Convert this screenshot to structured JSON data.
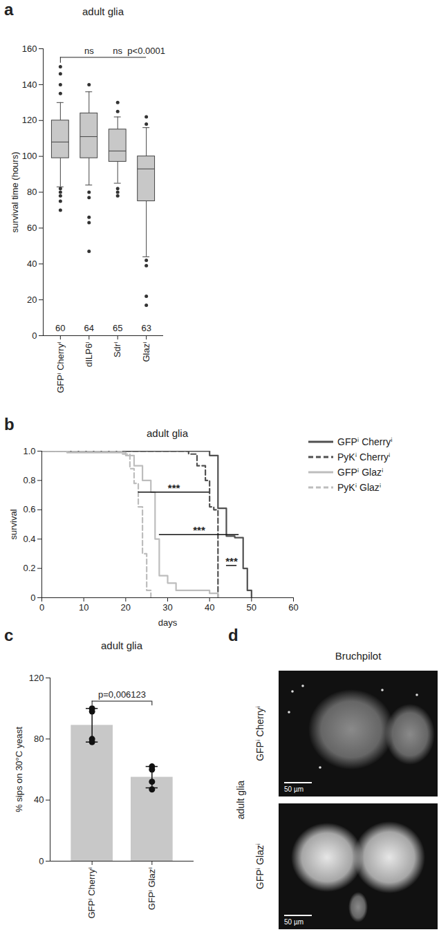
{
  "chart_data": [
    {
      "panel": "a",
      "type": "box",
      "title": "adult glia",
      "ylabel": "survival time (hours)",
      "categories": [
        "GFPⁱ Cherryⁱ",
        "dILP6ⁱ",
        "Sdrⁱ",
        "Glazⁱ"
      ],
      "ylim": [
        0,
        160
      ],
      "yticks": [
        0,
        20,
        40,
        60,
        80,
        100,
        120,
        140,
        160
      ],
      "color": "#c8c8c8",
      "boxes": [
        {
          "min": 83,
          "q1": 99,
          "median": 108,
          "q3": 120,
          "max": 130,
          "outliers": [
            70,
            75,
            78,
            80,
            82,
            135,
            140,
            146,
            150
          ]
        },
        {
          "min": 84,
          "q1": 99,
          "median": 111,
          "q3": 124,
          "max": 136,
          "outliers": [
            47,
            63,
            66,
            77,
            80,
            140
          ]
        },
        {
          "min": 85,
          "q1": 97,
          "median": 103,
          "q3": 115,
          "max": 122,
          "outliers": [
            78,
            80,
            82,
            125,
            130
          ]
        },
        {
          "min": 44,
          "q1": 75,
          "median": 93,
          "q3": 100,
          "max": 116,
          "outliers": [
            17,
            22,
            39,
            42,
            118,
            122
          ]
        }
      ],
      "n": [
        60,
        64,
        65,
        63
      ],
      "reference": "GFPⁱ Cherryⁱ",
      "comparisons": [
        {
          "category": "dILP6ⁱ",
          "label": "ns"
        },
        {
          "category": "Sdrⁱ",
          "label": "ns"
        },
        {
          "category": "Glazⁱ",
          "label": "p<0.0001"
        }
      ]
    },
    {
      "panel": "b",
      "type": "line",
      "title": "adult glia",
      "xlabel": "days",
      "ylabel": "survival",
      "xlim": [
        0,
        60
      ],
      "xticks": [
        0,
        10,
        20,
        30,
        40,
        50,
        60
      ],
      "ylim": [
        0,
        1
      ],
      "yticks": [
        0,
        0.2,
        0.4,
        0.6,
        0.8,
        {
          "value": 1,
          "label": "1.0"
        }
      ],
      "legend": "right",
      "series": [
        {
          "name": "GFPⁱ Cherryⁱ",
          "color": "#505050",
          "line_style": "solid",
          "x": [
            0,
            40,
            42,
            44,
            46,
            48,
            49,
            50
          ],
          "values": [
            1,
            0.97,
            0.61,
            0.42,
            0.41,
            0.2,
            0.05,
            0
          ]
        },
        {
          "name": "PyKⁱ Cherryⁱ",
          "color": "#505050",
          "line_style": "dashed",
          "x": [
            0,
            35,
            37,
            39,
            40,
            41,
            42
          ],
          "values": [
            1,
            0.98,
            0.9,
            0.8,
            0.62,
            0.6,
            0
          ]
        },
        {
          "name": "GFPⁱ Glazⁱ",
          "color": "#bdbdbd",
          "line_style": "solid",
          "x": [
            0,
            6,
            20,
            22,
            24,
            26,
            27,
            28,
            30,
            32,
            40,
            42
          ],
          "values": [
            1,
            0.99,
            0.97,
            0.9,
            0.8,
            0.72,
            0.4,
            0.15,
            0.1,
            0.05,
            0.03,
            0
          ]
        },
        {
          "name": "PyKⁱ Glazⁱ",
          "color": "#bdbdbd",
          "line_style": "dashed",
          "x": [
            0,
            19,
            21,
            22,
            23,
            24,
            25,
            26
          ],
          "values": [
            1,
            0.98,
            0.88,
            0.78,
            0.62,
            0.3,
            0.05,
            0
          ]
        }
      ],
      "annotations": [
        {
          "text": "***",
          "x1": 23,
          "x2": 40,
          "y": 0.72
        },
        {
          "text": "***",
          "x1": 28,
          "x2": 47,
          "y": 0.43
        },
        {
          "text": "***",
          "x1": 44,
          "x2": 46.5,
          "y": 0.22
        }
      ]
    },
    {
      "panel": "c",
      "type": "bar",
      "title": "adult glia",
      "ylabel": "% sips on 30°C yeast",
      "categories": [
        "GFPⁱ Cherryⁱ",
        "GFPⁱ Glazⁱ"
      ],
      "values": [
        89,
        55
      ],
      "error": [
        11,
        7
      ],
      "points": [
        [
          100,
          98,
          80,
          78
        ],
        [
          62,
          60,
          52,
          47
        ]
      ],
      "marker": "circle",
      "color": "#c8c8c8",
      "ylim": [
        0,
        120
      ],
      "yticks": [
        0,
        40,
        80,
        120
      ],
      "comparison": {
        "label": "p=0,006123"
      }
    }
  ],
  "images": {
    "panel": "d",
    "title": "Bruchpilot",
    "side_label": "adult glia",
    "rows": [
      "GFPⁱ Cherryⁱ",
      "GFPⁱ Glazⁱ"
    ],
    "scale_bar": "50 µm"
  }
}
